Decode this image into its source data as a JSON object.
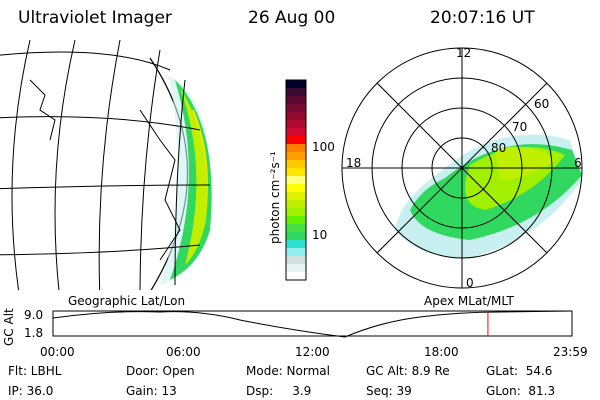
{
  "header": {
    "title": "Ultraviolet Imager",
    "date": "26 Aug 00",
    "time": "20:07:16 UT"
  },
  "colorbar": {
    "label": "photon cm⁻²s⁻¹",
    "ticks": [
      "100",
      "10"
    ],
    "colors": [
      "#00002e",
      "#3a0a30",
      "#5a0a32",
      "#7a0a32",
      "#900a30",
      "#b00a30",
      "#d00a30",
      "#ff0000",
      "#ff8000",
      "#ffa000",
      "#ffc800",
      "#ffe600",
      "#ffff80",
      "#ffff00",
      "#e0f000",
      "#c0f000",
      "#a0f000",
      "#64f000",
      "#44e044",
      "#30d860",
      "#30e0d0",
      "#90f0f0",
      "#d0e0e0",
      "#e8f2f0",
      "#ffffff"
    ]
  },
  "geo_panel": {
    "label": "Geographic Lat/Lon"
  },
  "polar_panel": {
    "label": "Apex MLat/MLT",
    "mlt_labels": [
      "12",
      "18",
      "6",
      "0"
    ],
    "lat_labels": [
      "60",
      "70",
      "80"
    ]
  },
  "timeline": {
    "ylabel": "GC Alt",
    "yticks": [
      "9.0",
      "1.8"
    ],
    "xticks": [
      "00:00",
      "06:00",
      "12:00",
      "18:00",
      "23:59"
    ],
    "current_fraction": 0.838,
    "marker_color": "#ff0000"
  },
  "info": {
    "row1": [
      "Flt: LBHL",
      "Door: Open",
      "Mode: Normal",
      "GC Alt: 8.9 Re",
      "GLat:  54.6"
    ],
    "row2": [
      "IP: 36.0",
      "Gain: 13",
      "Dsp:     3.9",
      "Seq: 39",
      "GLon:  81.3"
    ]
  }
}
